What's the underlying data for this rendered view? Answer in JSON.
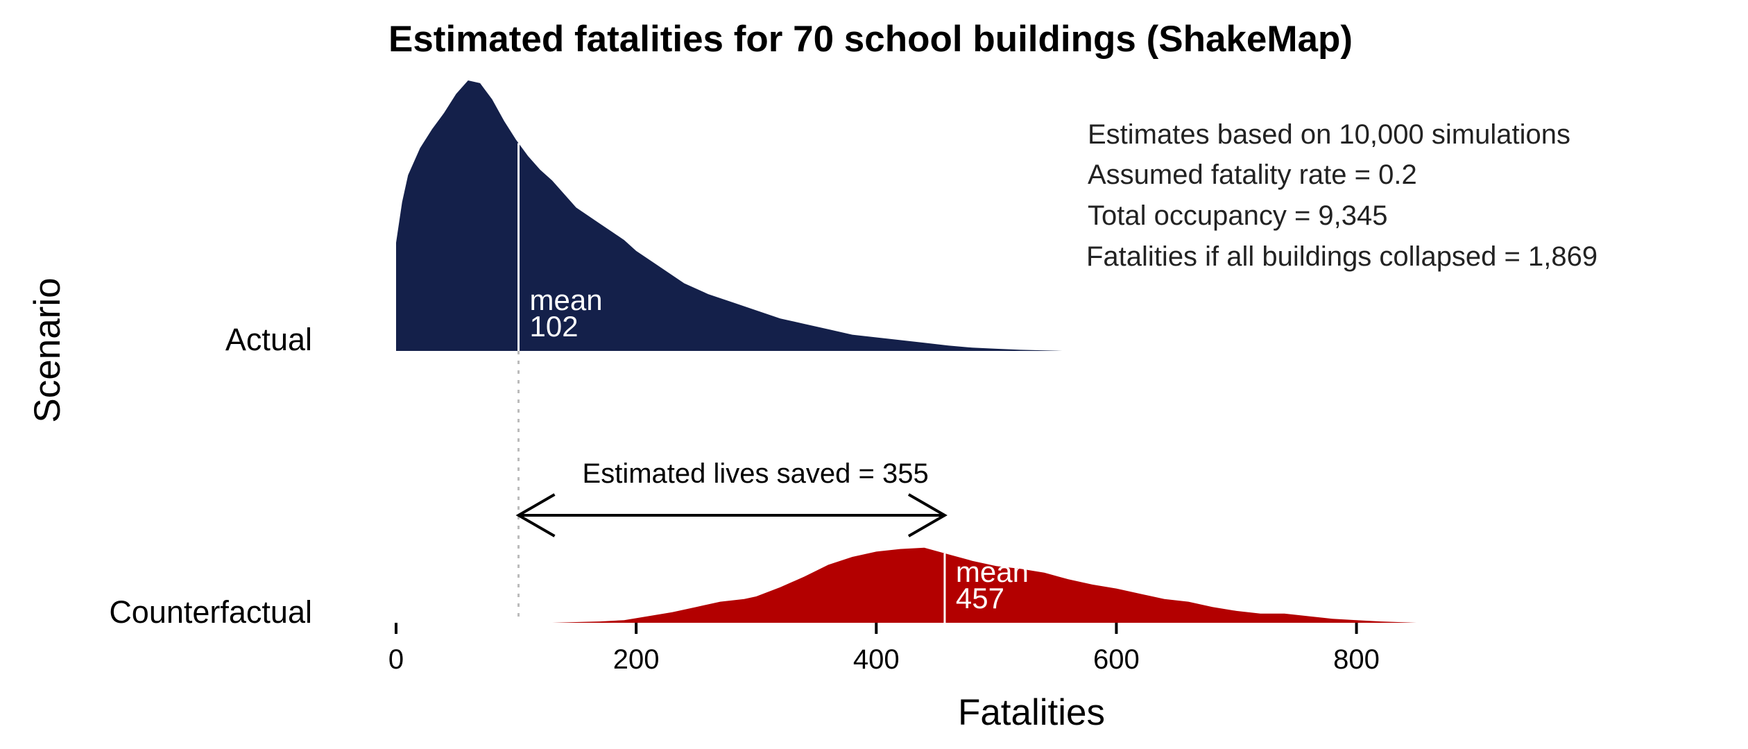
{
  "chart_data": {
    "type": "ridgeline",
    "title": "Estimated fatalities for 70 school buildings (ShakeMap)",
    "xlabel": "Fatalities",
    "ylabel": "Scenario",
    "xlim": [
      0,
      850
    ],
    "xticks": [
      0,
      200,
      400,
      600,
      800
    ],
    "grid": false,
    "series": [
      {
        "name": "Actual",
        "color": "#14204a",
        "mean_label": "mean",
        "mean": 102,
        "density": [
          [
            0,
            0.4
          ],
          [
            5,
            0.55
          ],
          [
            10,
            0.65
          ],
          [
            20,
            0.75
          ],
          [
            30,
            0.82
          ],
          [
            40,
            0.88
          ],
          [
            50,
            0.95
          ],
          [
            60,
            1.0
          ],
          [
            70,
            0.99
          ],
          [
            80,
            0.93
          ],
          [
            90,
            0.85
          ],
          [
            100,
            0.78
          ],
          [
            110,
            0.72
          ],
          [
            120,
            0.67
          ],
          [
            130,
            0.63
          ],
          [
            140,
            0.58
          ],
          [
            150,
            0.53
          ],
          [
            160,
            0.5
          ],
          [
            170,
            0.47
          ],
          [
            180,
            0.44
          ],
          [
            190,
            0.41
          ],
          [
            200,
            0.37
          ],
          [
            220,
            0.31
          ],
          [
            240,
            0.25
          ],
          [
            260,
            0.21
          ],
          [
            280,
            0.18
          ],
          [
            300,
            0.15
          ],
          [
            320,
            0.12
          ],
          [
            340,
            0.1
          ],
          [
            360,
            0.08
          ],
          [
            380,
            0.06
          ],
          [
            400,
            0.05
          ],
          [
            420,
            0.04
          ],
          [
            440,
            0.03
          ],
          [
            460,
            0.02
          ],
          [
            480,
            0.012
          ],
          [
            500,
            0.008
          ],
          [
            520,
            0.004
          ],
          [
            540,
            0.002
          ],
          [
            555,
            0.0
          ]
        ]
      },
      {
        "name": "Counterfactual",
        "color": "#b30000",
        "mean_label": "mean",
        "mean": 457,
        "density": [
          [
            130,
            0.0
          ],
          [
            150,
            0.005
          ],
          [
            170,
            0.01
          ],
          [
            190,
            0.02
          ],
          [
            210,
            0.05
          ],
          [
            230,
            0.08
          ],
          [
            250,
            0.12
          ],
          [
            270,
            0.16
          ],
          [
            290,
            0.18
          ],
          [
            300,
            0.2
          ],
          [
            320,
            0.27
          ],
          [
            340,
            0.35
          ],
          [
            360,
            0.44
          ],
          [
            380,
            0.5
          ],
          [
            400,
            0.54
          ],
          [
            420,
            0.56
          ],
          [
            440,
            0.57
          ],
          [
            460,
            0.52
          ],
          [
            480,
            0.47
          ],
          [
            500,
            0.43
          ],
          [
            520,
            0.41
          ],
          [
            540,
            0.38
          ],
          [
            560,
            0.33
          ],
          [
            580,
            0.29
          ],
          [
            600,
            0.26
          ],
          [
            620,
            0.22
          ],
          [
            640,
            0.18
          ],
          [
            660,
            0.16
          ],
          [
            680,
            0.12
          ],
          [
            700,
            0.09
          ],
          [
            720,
            0.07
          ],
          [
            740,
            0.07
          ],
          [
            760,
            0.05
          ],
          [
            780,
            0.03
          ],
          [
            800,
            0.02
          ],
          [
            820,
            0.01
          ],
          [
            850,
            0.0
          ]
        ]
      }
    ],
    "annotations": {
      "notes": [
        "Estimates based on 10,000 simulations",
        "Assumed fatality rate = 0.2",
        "Total occupancy = 9,345",
        "Fatalities if all buildings collapsed = 1,869"
      ],
      "arrow_label": "Estimated lives saved = 355",
      "arrow_from": 102,
      "arrow_to": 457
    }
  },
  "colors": {
    "actual": "#14204a",
    "counterfactual": "#b30000",
    "reference_line": "#bbbbbb"
  }
}
